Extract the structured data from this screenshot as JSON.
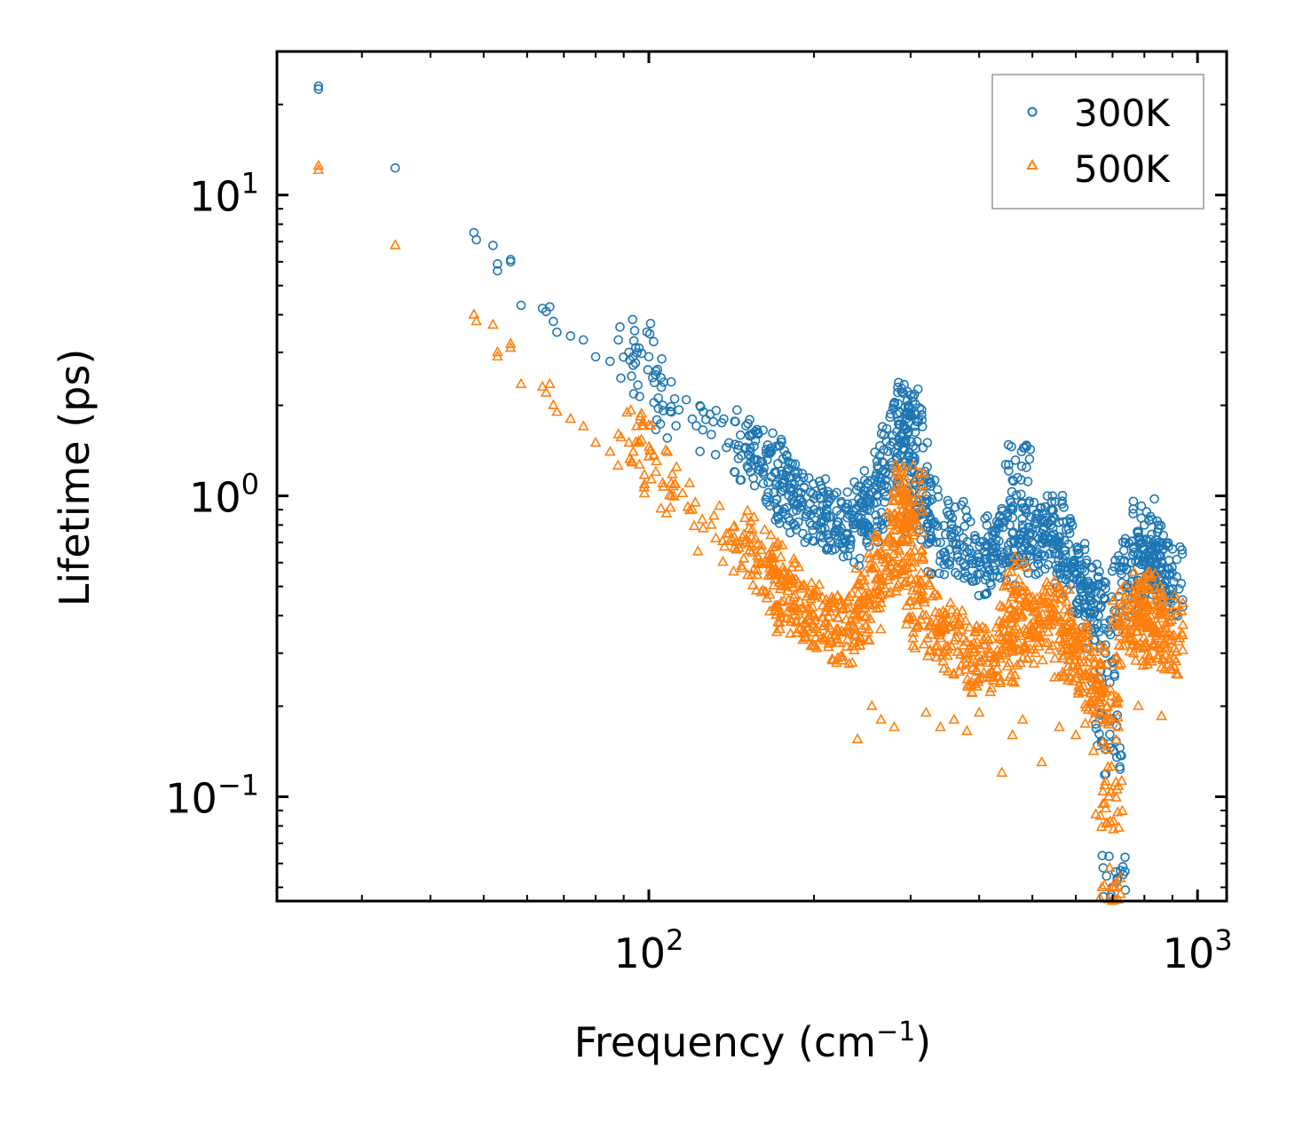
{
  "chart_data": {
    "type": "scatter",
    "xscale": "log",
    "yscale": "log",
    "xlim": [
      21,
      1130
    ],
    "ylim": [
      0.045,
      30
    ],
    "xlabel": "Frequency (cm",
    "xlabel_sup": "−1",
    "xlabel_end": ")",
    "ylabel": "Lifetime (ps)",
    "x_ticks": [
      {
        "value": 100,
        "base": "10",
        "exp": "2"
      },
      {
        "value": 1000,
        "base": "10",
        "exp": "3"
      }
    ],
    "y_ticks": [
      {
        "value": 0.1,
        "base": "10",
        "exp": "−1"
      },
      {
        "value": 1,
        "base": "10",
        "exp": "0"
      },
      {
        "value": 10,
        "base": "10",
        "exp": "1"
      }
    ],
    "legend_position": "top-right",
    "series": [
      {
        "name": "300K",
        "marker": "circle",
        "color": "#1f77b4",
        "x": [
          25,
          25,
          34.5,
          48,
          48.5,
          52,
          53,
          53,
          56,
          56,
          58.5,
          64,
          65,
          66,
          67,
          68,
          72,
          76,
          80,
          85,
          88,
          92,
          93,
          96,
          100,
          103,
          106,
          110,
          120,
          130,
          140,
          150,
          160,
          170,
          175,
          180,
          190,
          200,
          210,
          220,
          230,
          240,
          250,
          260,
          270,
          280,
          290,
          295,
          300,
          305,
          310,
          320,
          340,
          360,
          380,
          400,
          420,
          440,
          460,
          470,
          480,
          500,
          520,
          540,
          560,
          580,
          600,
          620,
          640,
          660,
          680,
          690,
          700,
          740,
          760,
          780,
          800,
          820,
          840,
          870,
          890
        ],
        "y": [
          23,
          22.5,
          12.3,
          7.5,
          7.1,
          6.8,
          5.9,
          5.6,
          6.1,
          6.0,
          4.3,
          4.2,
          4.1,
          4.25,
          3.8,
          3.5,
          3.4,
          3.3,
          2.9,
          2.8,
          3.3,
          3.0,
          2.5,
          3.1,
          2.9,
          2.6,
          2.0,
          1.9,
          1.8,
          1.6,
          1.5,
          1.45,
          1.3,
          1.2,
          1.1,
          1.0,
          0.95,
          0.9,
          0.85,
          0.8,
          0.75,
          0.85,
          0.9,
          1.0,
          1.2,
          1.4,
          1.6,
          1.9,
          1.85,
          1.2,
          0.95,
          0.9,
          0.7,
          0.75,
          0.65,
          0.6,
          0.7,
          0.65,
          0.75,
          1.15,
          0.8,
          0.7,
          0.75,
          0.8,
          0.7,
          0.6,
          0.55,
          0.5,
          0.45,
          0.4,
          0.3,
          0.15,
          0.05,
          0.5,
          0.55,
          0.6,
          0.8,
          0.65,
          0.55,
          0.5,
          0.55
        ]
      },
      {
        "name": "500K",
        "marker": "triangle",
        "color": "#ff7f0e",
        "x": [
          25,
          25,
          34.5,
          48,
          48.5,
          52,
          53,
          53,
          56,
          56,
          58.5,
          64,
          65,
          66,
          67,
          68,
          72,
          76,
          80,
          85,
          88,
          92,
          93,
          96,
          100,
          103,
          106,
          110,
          120,
          130,
          140,
          150,
          160,
          170,
          175,
          180,
          190,
          200,
          210,
          220,
          230,
          240,
          250,
          260,
          270,
          280,
          290,
          295,
          300,
          305,
          310,
          320,
          340,
          360,
          380,
          400,
          420,
          440,
          460,
          470,
          480,
          500,
          520,
          540,
          560,
          580,
          600,
          620,
          640,
          660,
          680,
          690,
          700,
          740,
          760,
          780,
          800,
          820,
          840,
          870,
          890
        ],
        "y": [
          12.5,
          12.1,
          6.8,
          4.0,
          3.8,
          3.7,
          3.0,
          2.9,
          3.2,
          3.1,
          2.35,
          2.3,
          2.2,
          2.35,
          2.0,
          1.9,
          1.8,
          1.7,
          1.5,
          1.4,
          1.6,
          1.5,
          1.3,
          1.5,
          1.35,
          1.2,
          1.1,
          1.0,
          0.9,
          0.8,
          0.75,
          0.7,
          0.6,
          0.55,
          0.5,
          0.45,
          0.42,
          0.4,
          0.38,
          0.36,
          0.35,
          0.4,
          0.45,
          0.5,
          0.6,
          0.7,
          0.8,
          1.0,
          0.95,
          0.6,
          0.45,
          0.4,
          0.35,
          0.33,
          0.3,
          0.28,
          0.3,
          0.3,
          0.35,
          0.5,
          0.4,
          0.35,
          0.38,
          0.42,
          0.38,
          0.32,
          0.3,
          0.28,
          0.25,
          0.22,
          0.18,
          0.1,
          0.045,
          0.35,
          0.38,
          0.4,
          0.45,
          0.4,
          0.35,
          0.32,
          0.38
        ]
      }
    ],
    "sparse_outliers_500K": {
      "x": [
        240,
        255,
        265,
        280,
        320,
        340,
        360,
        380,
        400,
        440,
        460,
        480,
        520,
        560,
        600,
        780,
        860
      ],
      "y": [
        0.155,
        0.2,
        0.18,
        0.17,
        0.19,
        0.17,
        0.18,
        0.165,
        0.19,
        0.12,
        0.16,
        0.18,
        0.13,
        0.17,
        0.16,
        0.2,
        0.185
      ]
    }
  }
}
